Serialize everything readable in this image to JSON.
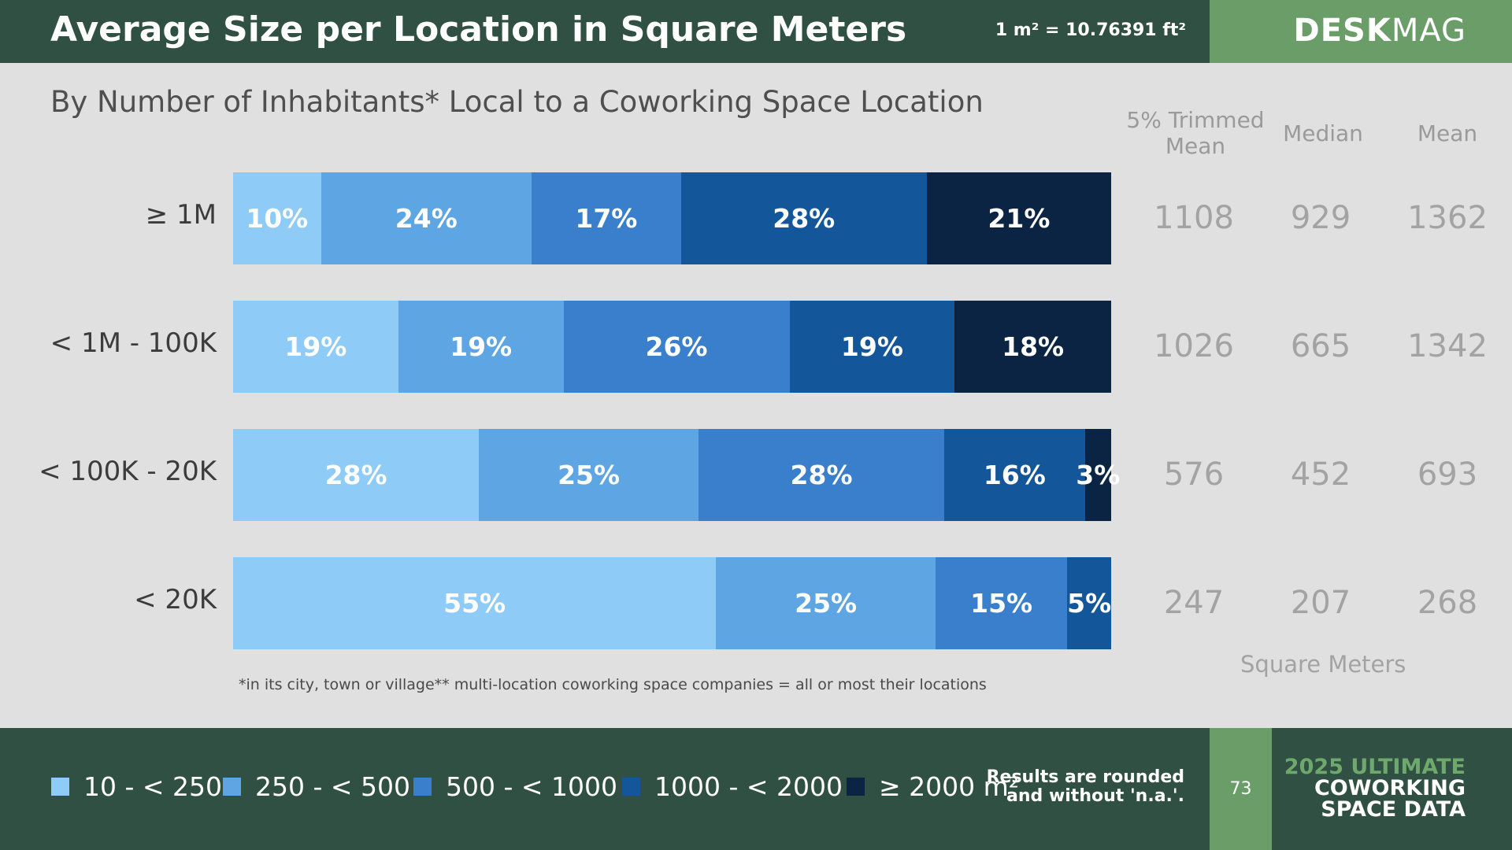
{
  "header": {
    "title": "Average Size per Location in Square Meters",
    "conversion": "1 m² = 10.76391 ft²",
    "brand_bold": "DESK",
    "brand_light": "MAG"
  },
  "subtitle": "By Number of Inhabitants* Local to a Coworking Space Location",
  "stat_headers": [
    "5% Trimmed Mean",
    "Median",
    "Mean"
  ],
  "stat_unit": "Square Meters",
  "footnote": "*in its city, town or village** multi-location coworking space companies = all or most their locations",
  "footer": {
    "rounded_note_line1": "Results are rounded",
    "rounded_note_line2": "and without 'n.a.'.",
    "page_number": "73",
    "report_line1": "2025 ULTIMATE",
    "report_line2": "COWORKING",
    "report_line3": "SPACE DATA"
  },
  "colors": {
    "header_bg": "#2f5043",
    "brand_green": "#6a9d68",
    "background": "#e0e0e0",
    "series": [
      "#8ecbf7",
      "#5ea5e3",
      "#3a7fcb",
      "#13579a",
      "#0b2444"
    ]
  },
  "chart_data": {
    "type": "bar",
    "orientation": "horizontal",
    "stacked": true,
    "percent": true,
    "categories": [
      "≥ 1M",
      "< 1M - 100K",
      "< 100K - 20K",
      "< 20K"
    ],
    "series": [
      {
        "name": "10 - < 250",
        "values": [
          10,
          19,
          28,
          55
        ],
        "labels": [
          "10%",
          "19%",
          "28%",
          "55%"
        ]
      },
      {
        "name": "250 - < 500",
        "values": [
          24,
          19,
          25,
          25
        ],
        "labels": [
          "24%",
          "19%",
          "25%",
          "25%"
        ]
      },
      {
        "name": "500 - < 1000",
        "values": [
          17,
          26,
          28,
          15
        ],
        "labels": [
          "17%",
          "26%",
          "28%",
          "15%"
        ]
      },
      {
        "name": "1000 - < 2000",
        "values": [
          28,
          19,
          16,
          5
        ],
        "labels": [
          "28%",
          "19%",
          "16%",
          "5%"
        ]
      },
      {
        "name": "≥ 2000 m²",
        "values": [
          21,
          18,
          3,
          0
        ],
        "labels": [
          "21%",
          "18%",
          "3%",
          ""
        ]
      }
    ],
    "stats": {
      "trimmed_mean": [
        1108,
        1026,
        576,
        247
      ],
      "median": [
        929,
        665,
        452,
        207
      ],
      "mean": [
        1362,
        1342,
        693,
        268
      ]
    },
    "legend_position": "bottom",
    "grid": false
  }
}
